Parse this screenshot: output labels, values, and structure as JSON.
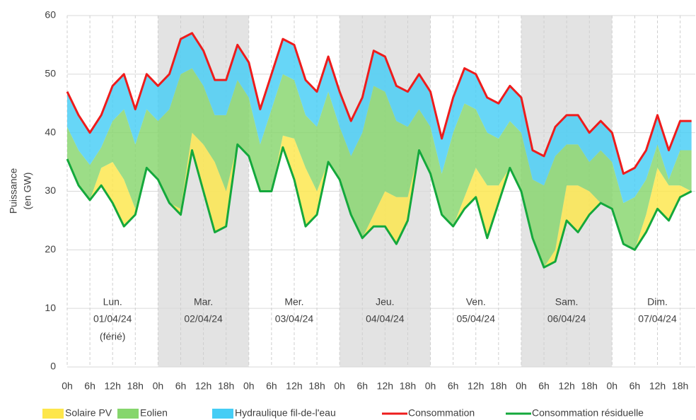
{
  "chart_data": {
    "type": "area",
    "ylabel": [
      "Puissance",
      "(en GW)"
    ],
    "ylim": [
      0,
      60
    ],
    "yticks": [
      0,
      10,
      20,
      30,
      40,
      50,
      60
    ],
    "xlim": [
      0,
      166
    ],
    "grid": true,
    "xticks": [
      {
        "value": 0,
        "label": "0h"
      },
      {
        "value": 6,
        "label": "6h"
      },
      {
        "value": 12,
        "label": "12h"
      },
      {
        "value": 18,
        "label": "18h"
      },
      {
        "value": 24,
        "label": "0h"
      },
      {
        "value": 30,
        "label": "6h"
      },
      {
        "value": 36,
        "label": "12h"
      },
      {
        "value": 42,
        "label": "18h"
      },
      {
        "value": 48,
        "label": "0h"
      },
      {
        "value": 54,
        "label": "6h"
      },
      {
        "value": 60,
        "label": "12h"
      },
      {
        "value": 66,
        "label": "18h"
      },
      {
        "value": 72,
        "label": "0h"
      },
      {
        "value": 78,
        "label": "6h"
      },
      {
        "value": 84,
        "label": "12h"
      },
      {
        "value": 90,
        "label": "18h"
      },
      {
        "value": 96,
        "label": "0h"
      },
      {
        "value": 102,
        "label": "6h"
      },
      {
        "value": 108,
        "label": "12h"
      },
      {
        "value": 114,
        "label": "18h"
      },
      {
        "value": 120,
        "label": "0h"
      },
      {
        "value": 126,
        "label": "6h"
      },
      {
        "value": 132,
        "label": "12h"
      },
      {
        "value": 138,
        "label": "18h"
      },
      {
        "value": 144,
        "label": "0h"
      },
      {
        "value": 150,
        "label": "6h"
      },
      {
        "value": 156,
        "label": "12h"
      },
      {
        "value": 162,
        "label": "18h"
      }
    ],
    "days": [
      {
        "name": "Lun.",
        "date": "01/04/24",
        "note": "(férié)"
      },
      {
        "name": "Mar.",
        "date": "02/04/24"
      },
      {
        "name": "Mer.",
        "date": "03/04/24"
      },
      {
        "name": "Jeu.",
        "date": "04/04/24"
      },
      {
        "name": "Ven.",
        "date": "05/04/24"
      },
      {
        "name": "Sam.",
        "date": "06/04/24"
      },
      {
        "name": "Dim.",
        "date": "07/04/24"
      }
    ],
    "x": [
      0,
      3,
      6,
      9,
      12,
      15,
      18,
      21,
      24,
      27,
      30,
      33,
      36,
      39,
      42,
      45,
      48,
      51,
      54,
      57,
      60,
      63,
      66,
      69,
      72,
      75,
      78,
      81,
      84,
      87,
      90,
      93,
      96,
      99,
      102,
      105,
      108,
      111,
      114,
      117,
      120,
      123,
      126,
      129,
      132,
      135,
      138,
      141,
      144,
      147,
      150,
      153,
      156,
      159,
      162,
      165
    ],
    "stack_on": "Consommation résiduelle",
    "series": [
      {
        "name": "Solaire PV",
        "kind": "area",
        "color": "#fde64b",
        "values": [
          0,
          0,
          0,
          3,
          7,
          8,
          1,
          0,
          0,
          0,
          1,
          3,
          8,
          12,
          6,
          0,
          0,
          0,
          0,
          2,
          7,
          10,
          4,
          0,
          0,
          0,
          0,
          2,
          6,
          8,
          4,
          0,
          0,
          0,
          0,
          2,
          5,
          9,
          3,
          0,
          0,
          0,
          0,
          2,
          6,
          8,
          4,
          0,
          0,
          0,
          0,
          3,
          7,
          6,
          2,
          0
        ]
      },
      {
        "name": "Eolien",
        "kind": "area",
        "color": "#86d66d",
        "values": [
          5.5,
          6,
          6,
          3.5,
          7,
          12,
          11,
          10,
          10,
          16,
          23,
          11,
          10,
          8,
          13,
          11,
          10,
          8,
          14,
          10.5,
          10,
          9,
          11,
          12,
          9,
          10,
          18,
          22,
          17,
          13,
          12,
          7,
          8,
          7,
          16,
          16,
          10,
          9,
          8,
          8,
          10,
          10,
          14,
          16,
          7,
          7,
          5,
          9,
          8,
          7,
          9,
          6,
          4,
          1,
          6,
          7
        ]
      },
      {
        "name": "Hydraulique fil-de-l'eau",
        "kind": "area",
        "color": "#45cdf5",
        "values": [
          6,
          6,
          5.5,
          5.5,
          6,
          6,
          6,
          6,
          6,
          6,
          6,
          6,
          6,
          6,
          6,
          6,
          6,
          6,
          6,
          6,
          6,
          6,
          6,
          6,
          6,
          6,
          6,
          6,
          6,
          6,
          6,
          6,
          6,
          6,
          6,
          6,
          6,
          6,
          6,
          6,
          6,
          5,
          5,
          5,
          5,
          5,
          5,
          5,
          5,
          5,
          5,
          5,
          5,
          5,
          5,
          5
        ]
      },
      {
        "name": "Consommation",
        "kind": "line",
        "color": "#ee1c1c",
        "values": [
          47,
          43,
          40,
          43,
          48,
          50,
          44,
          50,
          48,
          50,
          56,
          57,
          54,
          49,
          49,
          55,
          52,
          44,
          50,
          56,
          55,
          49,
          47,
          53,
          47,
          42,
          46,
          54,
          53,
          48,
          47,
          50,
          47,
          39,
          46,
          51,
          50,
          46,
          45,
          48,
          46,
          37,
          36,
          41,
          43,
          43,
          40,
          42,
          40,
          33,
          34,
          37,
          43,
          37,
          42,
          42
        ]
      },
      {
        "name": "Consommation résiduelle",
        "kind": "line",
        "color": "#14a83c",
        "values": [
          35.5,
          31,
          28.5,
          31,
          28,
          24,
          26,
          34,
          32,
          28,
          26,
          37,
          30,
          23,
          24,
          38,
          36,
          30,
          30,
          37.5,
          32,
          24,
          26,
          35,
          32,
          26,
          22,
          24,
          24,
          21,
          25,
          37,
          33,
          26,
          24,
          27,
          29,
          22,
          28,
          34,
          30,
          22,
          17,
          18,
          25,
          23,
          26,
          28,
          27,
          21,
          20,
          23,
          27,
          25,
          29,
          30
        ]
      }
    ]
  }
}
